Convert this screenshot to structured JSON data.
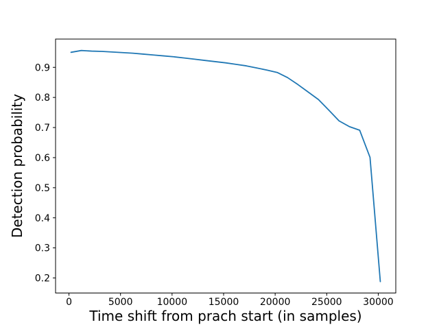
{
  "chart_data": {
    "type": "line",
    "xlabel": "Time shift from prach start (in samples)",
    "ylabel": "Detection probability",
    "x": [
      200,
      1200,
      2200,
      3200,
      4200,
      5200,
      6200,
      7200,
      8200,
      9200,
      10200,
      11200,
      12200,
      13200,
      14200,
      15200,
      16200,
      17200,
      18200,
      19200,
      20200,
      21200,
      22200,
      23200,
      24200,
      25200,
      26200,
      27200,
      28200,
      29200,
      30200
    ],
    "y": [
      0.95,
      0.956,
      0.954,
      0.953,
      0.951,
      0.949,
      0.947,
      0.944,
      0.941,
      0.938,
      0.935,
      0.931,
      0.927,
      0.923,
      0.919,
      0.915,
      0.91,
      0.905,
      0.898,
      0.891,
      0.883,
      0.866,
      0.843,
      0.818,
      0.793,
      0.758,
      0.722,
      0.703,
      0.691,
      0.601,
      0.188
    ],
    "xlim": [
      -1300,
      31700
    ],
    "ylim": [
      0.15,
      0.994
    ],
    "xticks": [
      0,
      5000,
      10000,
      15000,
      20000,
      25000,
      30000
    ],
    "xtick_labels": [
      "0",
      "5000",
      "10000",
      "15000",
      "20000",
      "25000",
      "30000"
    ],
    "yticks": [
      0.2,
      0.3,
      0.4,
      0.5,
      0.6,
      0.7,
      0.8,
      0.9
    ],
    "ytick_labels": [
      "0.2",
      "0.3",
      "0.4",
      "0.5",
      "0.6",
      "0.7",
      "0.8",
      "0.9"
    ],
    "line_color": "#1f77b4",
    "spine_color": "#000000",
    "grid": false,
    "legend": "none"
  }
}
